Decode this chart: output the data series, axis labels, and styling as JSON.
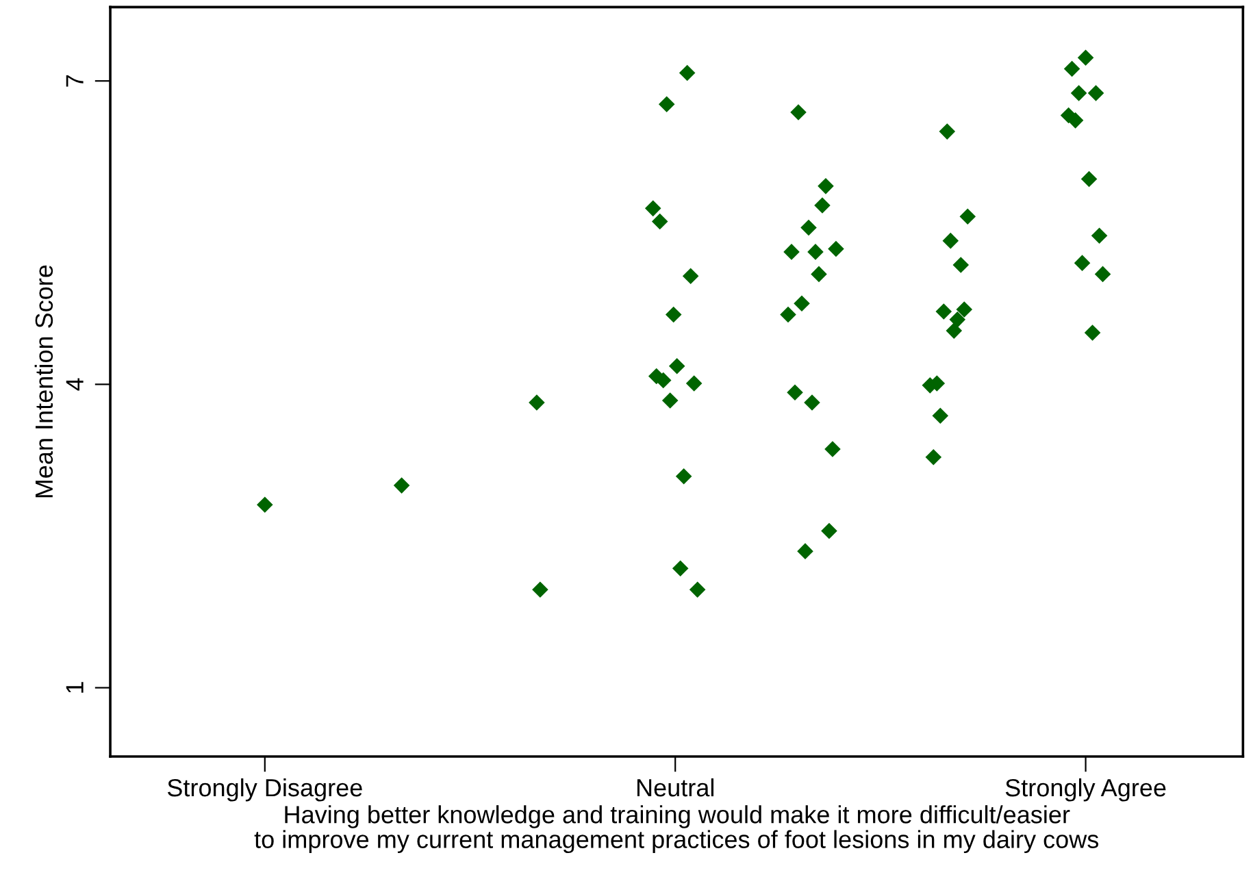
{
  "chart_data": {
    "type": "scatter",
    "xlabel": "Having better knowledge and training would make it more difficult/easier\nto improve my current management practices of foot lesions in my dairy cows",
    "ylabel": "Mean Intention Score",
    "categories": [
      "Strongly Disagree",
      null,
      null,
      "Neutral",
      null,
      null,
      "Strongly Agree"
    ],
    "ylim": [
      0.32,
      7.73
    ],
    "yticks": [
      1,
      4,
      7
    ],
    "grid": false,
    "marker": "diamond",
    "series": [
      {
        "color": "#006400",
        "values": [
          2.81,
          3.0,
          3.82,
          5.74,
          4.69,
          3.99,
          6.66
        ]
      },
      {
        "color": "#006400",
        "values": [
          null,
          null,
          1.97,
          4.08,
          5.31,
          3.28,
          7.12
        ]
      },
      {
        "color": "#006400",
        "values": [
          null,
          null,
          null,
          5.61,
          3.92,
          4.01,
          6.61
        ]
      },
      {
        "color": "#006400",
        "values": [
          null,
          null,
          null,
          4.04,
          6.69,
          3.69,
          6.88
        ]
      },
      {
        "color": "#006400",
        "values": [
          null,
          null,
          null,
          6.77,
          4.8,
          4.72,
          5.2
        ]
      },
      {
        "color": "#006400",
        "values": [
          null,
          null,
          null,
          3.84,
          2.35,
          6.5,
          7.23
        ]
      },
      {
        "color": "#006400",
        "values": [
          null,
          null,
          null,
          4.69,
          5.55,
          5.42,
          6.03
        ]
      },
      {
        "color": "#006400",
        "values": [
          null,
          null,
          null,
          4.18,
          3.82,
          4.53,
          4.51
        ]
      },
      {
        "color": "#006400",
        "values": [
          null,
          null,
          null,
          2.18,
          5.31,
          4.64,
          6.88
        ]
      },
      {
        "color": "#006400",
        "values": [
          null,
          null,
          null,
          3.09,
          5.09,
          5.18,
          5.47
        ]
      },
      {
        "color": "#006400",
        "values": [
          null,
          null,
          null,
          7.08,
          5.77,
          4.74,
          5.09
        ]
      },
      {
        "color": "#006400",
        "values": [
          null,
          null,
          null,
          5.07,
          5.96,
          5.66,
          null
        ]
      },
      {
        "color": "#006400",
        "values": [
          null,
          null,
          null,
          4.01,
          2.55,
          null,
          null
        ]
      },
      {
        "color": "#006400",
        "values": [
          null,
          null,
          null,
          1.97,
          3.36,
          null,
          null
        ]
      },
      {
        "color": "#006400",
        "values": [
          null,
          null,
          null,
          null,
          5.34,
          null,
          null
        ]
      }
    ]
  }
}
